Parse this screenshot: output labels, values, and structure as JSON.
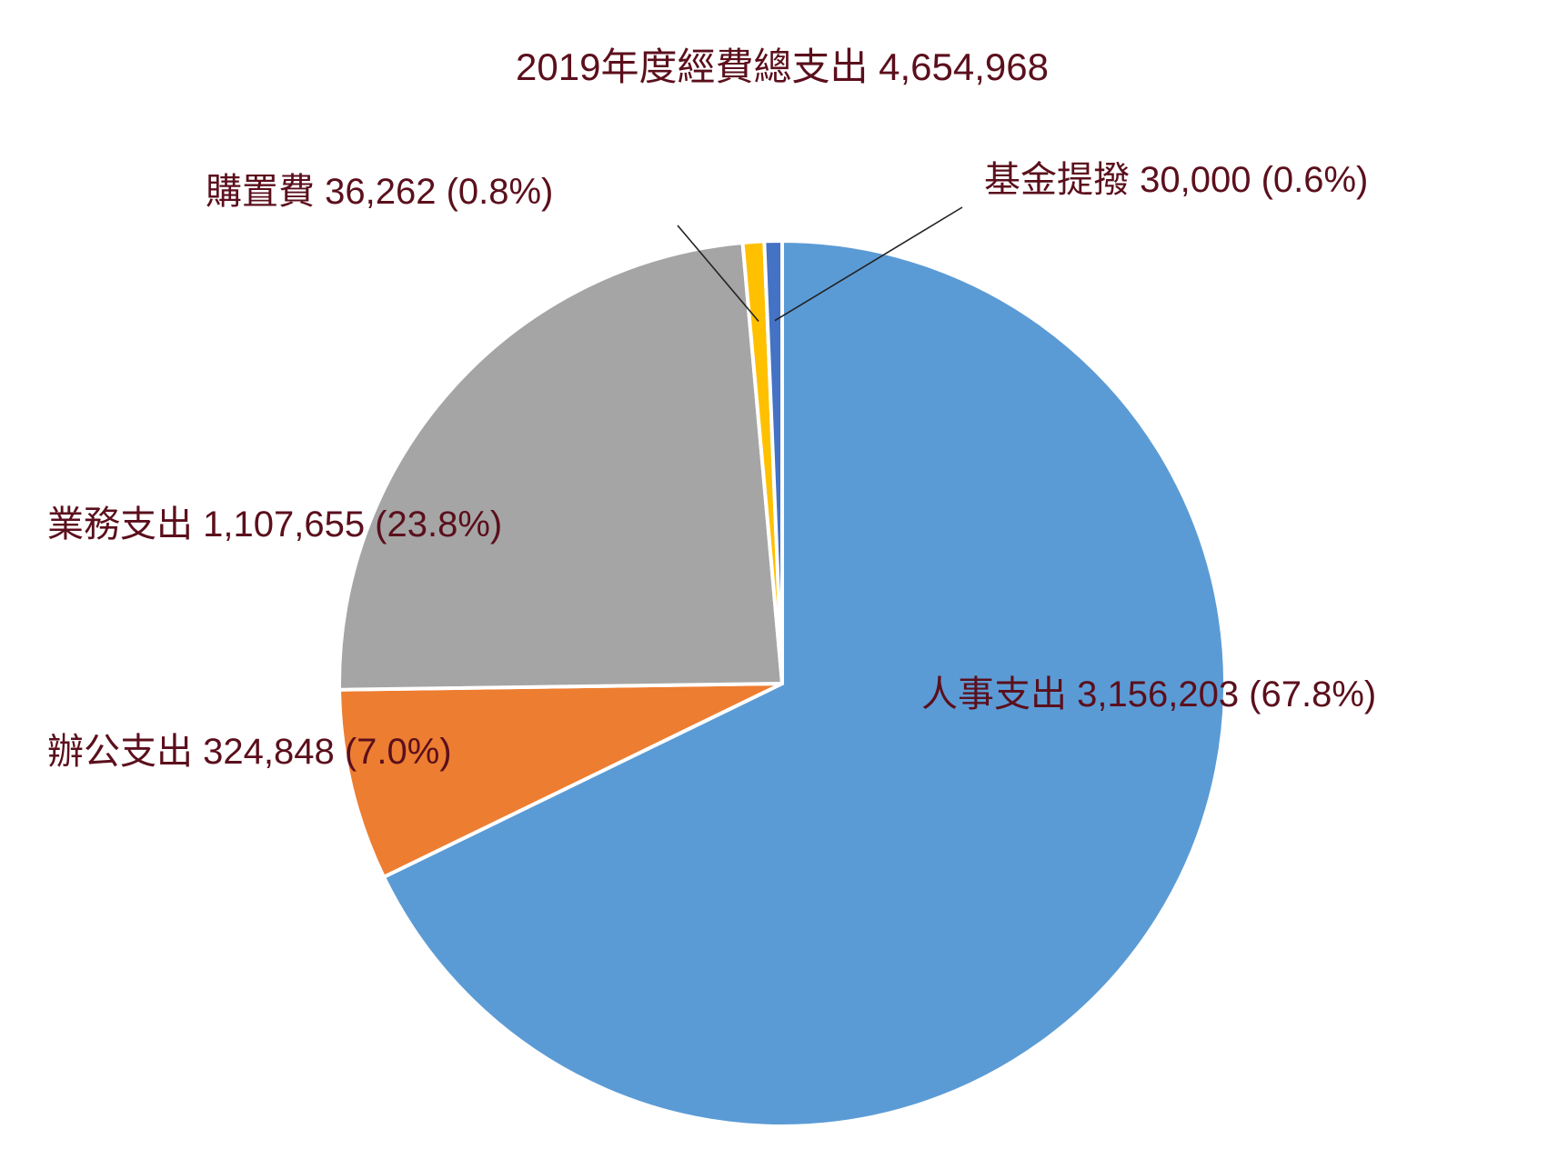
{
  "chart_data": {
    "type": "pie",
    "title": "2019年度經費總支出  4,654,968",
    "total": 4654968,
    "slices": [
      {
        "name": "人事支出",
        "value": 3156203,
        "percent": 67.8,
        "color": "#5b9bd5",
        "label": "人事支出  3,156,203 (67.8%)"
      },
      {
        "name": "辦公支出",
        "value": 324848,
        "percent": 7.0,
        "color": "#ed7d31",
        "label": "辦公支出  324,848 (7.0%)"
      },
      {
        "name": "業務支出",
        "value": 1107655,
        "percent": 23.8,
        "color": "#a5a5a5",
        "label": "業務支出  1,107,655 (23.8%)"
      },
      {
        "name": "購置費",
        "value": 36262,
        "percent": 0.8,
        "color": "#ffc000",
        "label": "購置費   36,262 (0.8%)"
      },
      {
        "name": "基金提撥",
        "value": 30000,
        "percent": 0.6,
        "color": "#4472c4",
        "label": "基金提撥 30,000 (0.6%)"
      }
    ]
  }
}
